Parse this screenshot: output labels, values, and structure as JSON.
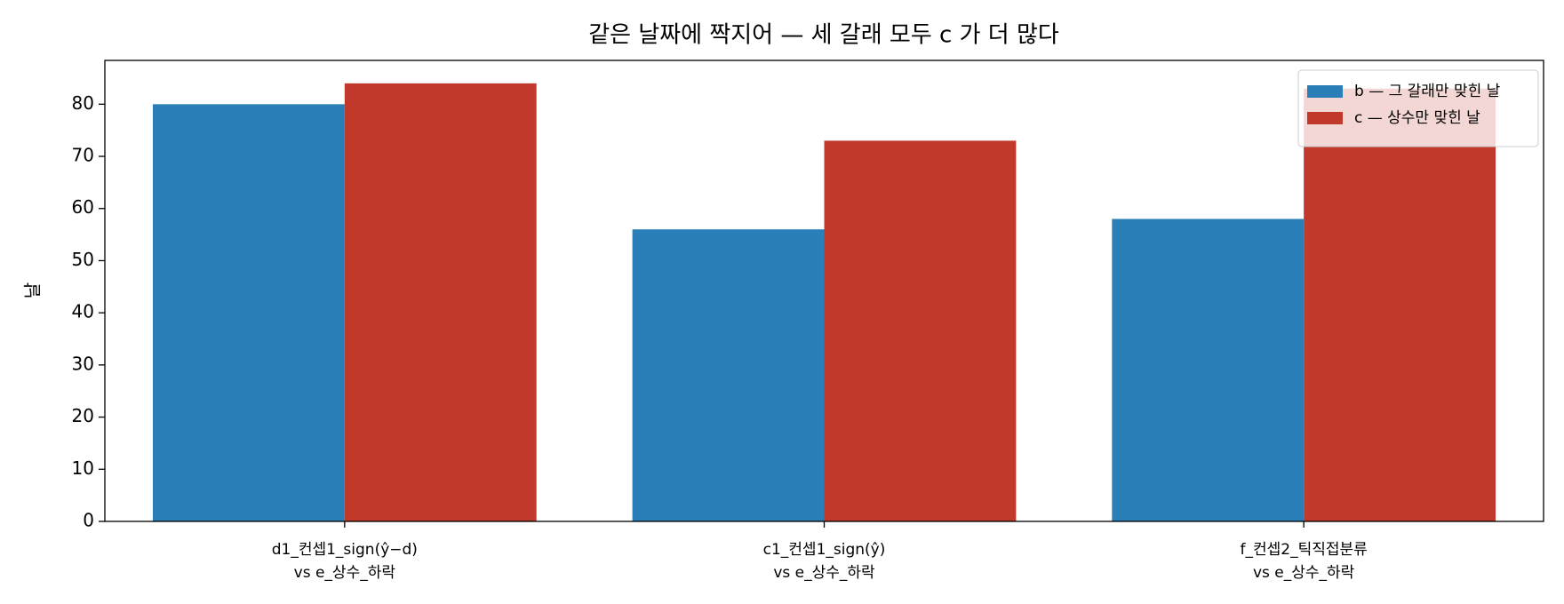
{
  "chart_data": {
    "type": "bar",
    "title": "같은 날짜에 짝지어 — 세 갈래 모두 c 가 더 많다",
    "y_label": "날",
    "categories": [
      [
        "d1_컨셉1_sign(ŷ−d)",
        "vs  e_상수_하락"
      ],
      [
        "c1_컨셉1_sign(ŷ)",
        "vs  e_상수_하락"
      ],
      [
        "f_컨셉2_틱직접분류",
        "vs  e_상수_하락"
      ]
    ],
    "series": [
      {
        "name": "b — 그 갈래만 맞힌 날",
        "color": "#2a7fb8",
        "values": [
          80,
          56,
          58
        ]
      },
      {
        "name": "c — 상수만 맞힌 날",
        "color": "#c0392b",
        "values": [
          84,
          73,
          83
        ]
      }
    ],
    "ylim": [
      0,
      88.4
    ],
    "yticks": [
      0,
      10,
      20,
      30,
      40,
      50,
      60,
      70,
      80
    ],
    "legend": "upper right"
  }
}
